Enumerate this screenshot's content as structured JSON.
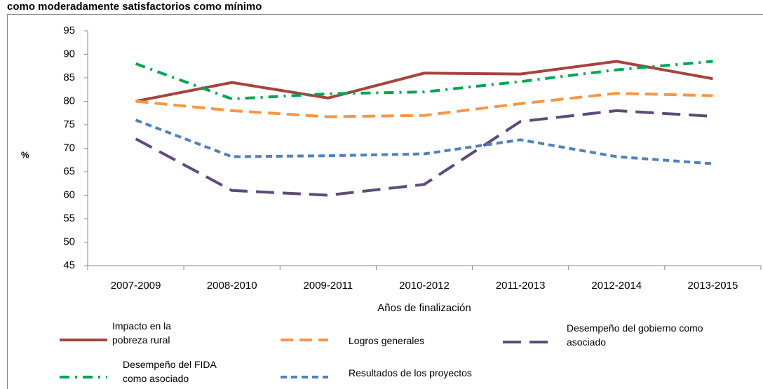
{
  "chart_data": {
    "type": "line",
    "title": "como moderadamente satisfactorios como mínimo",
    "y_label": "%",
    "x_label": "Años de finalización",
    "categories": [
      "2007-2009",
      "2008-2010",
      "2009-2011",
      "2010-2012",
      "2011-2013",
      "2012-2014",
      "2013-2015"
    ],
    "series": [
      {
        "name": "Impacto en la pobreza rural",
        "color": "#a6433d",
        "dash": "solid",
        "values": [
          80,
          84,
          80.7,
          86,
          85.8,
          88.5,
          84.8
        ]
      },
      {
        "name": "Logros generales",
        "color": "#f79646",
        "dash": "dashed",
        "values": [
          80,
          78,
          76.7,
          77,
          79.5,
          81.7,
          81.2
        ]
      },
      {
        "name": "Desempeño del gobierno como asociado",
        "color": "#5f4a7b",
        "dash": "long-dashed",
        "values": [
          72,
          61,
          60,
          62.3,
          75.7,
          78,
          76.8
        ]
      },
      {
        "name": "Desempeño del FIDA como asociado",
        "color": "#00a651",
        "dash": "dash-dot",
        "values": [
          88,
          80.5,
          81.6,
          82,
          84.2,
          86.7,
          88.5
        ]
      },
      {
        "name": "Resultados de los proyectos",
        "color": "#4f81bd",
        "dash": "short-dashed",
        "values": [
          76,
          68.2,
          68.4,
          68.8,
          71.8,
          68.2,
          66.7
        ]
      }
    ],
    "ylim": [
      45,
      95
    ],
    "yticks": [
      45,
      50,
      55,
      60,
      65,
      70,
      75,
      80,
      85,
      90,
      95
    ],
    "grid": false,
    "legend": "bottom"
  }
}
